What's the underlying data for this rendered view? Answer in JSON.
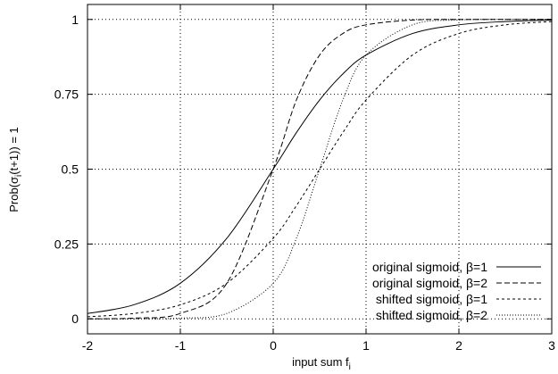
{
  "chart_data": {
    "type": "line",
    "xlabel": "input sum f",
    "xlabel_sub": "i",
    "ylabel_parts": [
      "Prob(",
      "σ",
      "i",
      "(t+1)) = 1"
    ],
    "xlim": [
      -2,
      3
    ],
    "ylim": [
      -0.05,
      1.05
    ],
    "xticks": [
      -2,
      -1,
      0,
      1,
      2,
      3
    ],
    "xtick_labels": [
      "-2",
      "-1",
      "0",
      "1",
      "2",
      "3"
    ],
    "yticks": [
      0,
      0.25,
      0.5,
      0.75,
      1
    ],
    "ytick_labels": [
      "0",
      "0.25",
      "0.5",
      "0.75",
      "1"
    ],
    "grid": true,
    "legend_position": "bottom-right",
    "x": [
      -2,
      -1.5,
      -1,
      -0.5,
      0,
      0.25,
      0.5,
      0.75,
      1,
      1.5,
      2,
      2.5,
      3
    ],
    "series": [
      {
        "name": "original sigmoid, β=1",
        "values": [
          0.018,
          0.047,
          0.119,
          0.269,
          0.5,
          0.622,
          0.731,
          0.818,
          0.881,
          0.953,
          0.982,
          0.993,
          0.998
        ],
        "dash": "solid"
      },
      {
        "name": "original sigmoid, β=2",
        "values": [
          0.0003,
          0.0025,
          0.018,
          0.119,
          0.5,
          0.731,
          0.881,
          0.953,
          0.982,
          0.998,
          1.0,
          1.0,
          1.0
        ],
        "dash": "dashed"
      },
      {
        "name": "shifted sigmoid, β=1",
        "values": [
          0.007,
          0.018,
          0.047,
          0.119,
          0.269,
          0.378,
          0.5,
          0.622,
          0.731,
          0.881,
          0.953,
          0.982,
          0.993
        ],
        "dash": "short-dashed"
      },
      {
        "name": "shifted sigmoid, β=2",
        "values": [
          5e-05,
          0.0003,
          0.0025,
          0.018,
          0.119,
          0.269,
          0.5,
          0.731,
          0.881,
          0.982,
          0.998,
          1.0,
          1.0
        ],
        "dash": "dotted"
      }
    ]
  }
}
